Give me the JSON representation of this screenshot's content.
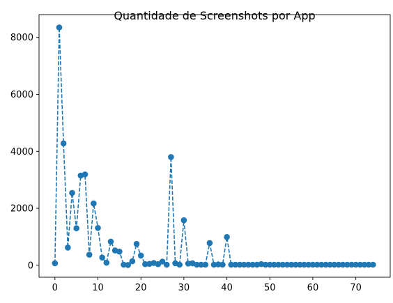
{
  "chart_data": {
    "type": "line",
    "title": "Quantidade de Screenshots por App",
    "xlabel": "",
    "ylabel": "",
    "xlim": [
      -3.7,
      78
    ],
    "ylim": [
      -420,
      8800
    ],
    "xticks": [
      0,
      10,
      20,
      30,
      40,
      50,
      60,
      70
    ],
    "yticks": [
      0,
      2000,
      4000,
      6000,
      8000
    ],
    "grid": false,
    "line_style": "dashed",
    "marker": "circle",
    "color": "#1f77b4",
    "series": [
      {
        "x": [
          0,
          1,
          2,
          3,
          4,
          5,
          6,
          7,
          8,
          9,
          10,
          11,
          12,
          13,
          14,
          15,
          16,
          17,
          18,
          19,
          20,
          21,
          22,
          23,
          24,
          25,
          26,
          27,
          28,
          29,
          30,
          31,
          32,
          33,
          34,
          35,
          36,
          37,
          38,
          39,
          40,
          41,
          42,
          43,
          44,
          45,
          46,
          47,
          48,
          49,
          50,
          51,
          52,
          53,
          54,
          55,
          56,
          57,
          58,
          59,
          60,
          61,
          62,
          63,
          64,
          65,
          66,
          67,
          68,
          69,
          70,
          71,
          72,
          73,
          74
        ],
        "values": [
          70,
          8350,
          4280,
          620,
          2540,
          1300,
          3150,
          3190,
          370,
          2170,
          1310,
          270,
          90,
          830,
          520,
          480,
          20,
          10,
          140,
          750,
          340,
          40,
          50,
          80,
          40,
          130,
          20,
          3800,
          70,
          20,
          1580,
          60,
          70,
          20,
          20,
          20,
          780,
          20,
          30,
          20,
          990,
          20,
          20,
          20,
          20,
          20,
          20,
          20,
          40,
          20,
          20,
          20,
          20,
          20,
          20,
          20,
          20,
          20,
          20,
          20,
          20,
          20,
          20,
          20,
          20,
          20,
          20,
          20,
          20,
          20,
          20,
          20,
          20,
          20,
          20
        ]
      }
    ]
  }
}
